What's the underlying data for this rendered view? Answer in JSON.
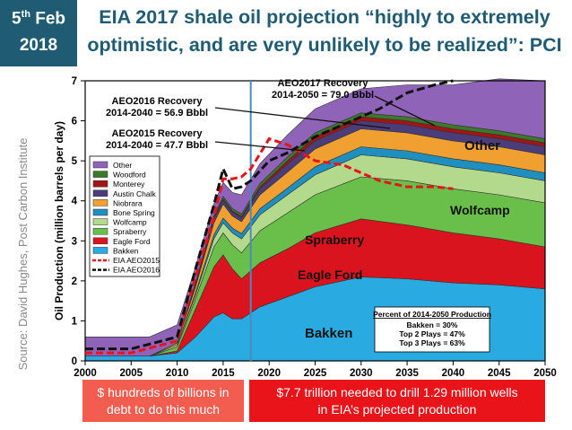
{
  "header": {
    "date_day": "5",
    "date_suffix": "th",
    "date_month": "Feb",
    "date_year": "2018",
    "title_line1": "EIA 2017 shale oil projection “highly to extremely",
    "title_line2": "optimistic, and are very unlikely to be realized”: PCI"
  },
  "source": "Source: David Hughes, Post Carbon Institute",
  "boxes": {
    "left_line1": "$ hundreds of billions in",
    "left_line2": "debt to do this much",
    "right_line1": "$7.7 trillion needed to drill 1.29 million wells",
    "right_line2": "in EIA’s projected production"
  },
  "chart_data": {
    "type": "area",
    "ylabel": "Oil Production (million barrels per day)",
    "xlim": [
      2000,
      2050
    ],
    "ylim": [
      0,
      7
    ],
    "xticks": [
      "2000",
      "2005",
      "2010",
      "2015",
      "2020",
      "2025",
      "2030",
      "2035",
      "2040",
      "2045",
      "2050"
    ],
    "yticks": [
      "0",
      "1",
      "2",
      "3",
      "4",
      "5",
      "6",
      "7"
    ],
    "grid": false,
    "legend_position": "left",
    "x": [
      2000,
      2007,
      2010,
      2012,
      2014,
      2015,
      2016,
      2017,
      2019,
      2022,
      2025,
      2030,
      2035,
      2040,
      2045,
      2050
    ],
    "series": [
      {
        "name": "Bakken",
        "color": "#29abe2",
        "values": [
          0.12,
          0.12,
          0.2,
          0.6,
          1.1,
          1.2,
          1.05,
          1.05,
          1.35,
          1.6,
          1.85,
          2.1,
          2.05,
          1.95,
          1.9,
          1.8
        ]
      },
      {
        "name": "Eagle Ford",
        "color": "#d9141e",
        "values": [
          0.0,
          0.0,
          0.05,
          0.7,
          1.25,
          1.45,
          1.25,
          1.0,
          1.1,
          1.2,
          1.35,
          1.45,
          1.35,
          1.25,
          1.15,
          1.05
        ]
      },
      {
        "name": "Spraberry",
        "color": "#6abf4b",
        "values": [
          0.0,
          0.0,
          0.1,
          0.25,
          0.5,
          0.55,
          0.6,
          0.65,
          0.8,
          0.9,
          0.95,
          1.05,
          1.1,
          1.1,
          1.1,
          1.1
        ]
      },
      {
        "name": "Wolfcamp",
        "color": "#b3d98c",
        "values": [
          0.0,
          0.0,
          0.05,
          0.1,
          0.2,
          0.25,
          0.3,
          0.35,
          0.4,
          0.45,
          0.5,
          0.55,
          0.55,
          0.55,
          0.55,
          0.55
        ]
      },
      {
        "name": "Bone Spring",
        "color": "#1f8fbf",
        "values": [
          0.0,
          0.0,
          0.0,
          0.05,
          0.1,
          0.12,
          0.12,
          0.13,
          0.15,
          0.17,
          0.2,
          0.2,
          0.2,
          0.2,
          0.2,
          0.2
        ]
      },
      {
        "name": "Niobrara",
        "color": "#f0a030",
        "values": [
          0.0,
          0.0,
          0.05,
          0.15,
          0.3,
          0.35,
          0.3,
          0.3,
          0.35,
          0.4,
          0.45,
          0.45,
          0.45,
          0.45,
          0.45,
          0.45
        ]
      },
      {
        "name": "Austin Chalk",
        "color": "#4a3d7a",
        "values": [
          0.0,
          0.0,
          0.0,
          0.05,
          0.1,
          0.1,
          0.1,
          0.1,
          0.15,
          0.2,
          0.2,
          0.2,
          0.2,
          0.2,
          0.2,
          0.2
        ]
      },
      {
        "name": "Monterey",
        "color": "#a31515",
        "values": [
          0.0,
          0.0,
          0.0,
          0.02,
          0.03,
          0.03,
          0.03,
          0.03,
          0.05,
          0.08,
          0.1,
          0.1,
          0.1,
          0.1,
          0.1,
          0.1
        ]
      },
      {
        "name": "Woodford",
        "color": "#3a7a2a",
        "values": [
          0.0,
          0.0,
          0.0,
          0.03,
          0.05,
          0.06,
          0.06,
          0.06,
          0.08,
          0.1,
          0.1,
          0.1,
          0.1,
          0.1,
          0.1,
          0.1
        ]
      },
      {
        "name": "Other",
        "color": "#8e63b8",
        "values": [
          0.48,
          0.48,
          0.45,
          0.4,
          0.3,
          0.35,
          0.4,
          0.48,
          0.5,
          0.55,
          0.6,
          0.6,
          0.8,
          1.0,
          1.3,
          1.45
        ]
      }
    ],
    "lines": [
      {
        "name": "EIA AEO2015",
        "color": "#e8141a",
        "dash": "8,4",
        "x": [
          2000,
          2005,
          2010,
          2012,
          2014,
          2015,
          2016,
          2017,
          2018,
          2020,
          2022,
          2025,
          2028,
          2030,
          2032,
          2035,
          2038,
          2040
        ],
        "values": [
          0.2,
          0.2,
          0.5,
          2.1,
          3.6,
          4.55,
          4.55,
          4.6,
          4.8,
          5.55,
          5.4,
          5.0,
          4.9,
          4.7,
          4.5,
          4.35,
          4.35,
          4.3
        ]
      },
      {
        "name": "EIA AEO2016",
        "color": "#111111",
        "dash": "9,4",
        "x": [
          2000,
          2005,
          2010,
          2012,
          2014,
          2015,
          2016,
          2017,
          2018,
          2020,
          2022,
          2025,
          2028,
          2030,
          2032,
          2035,
          2038,
          2040
        ],
        "values": [
          0.3,
          0.3,
          0.6,
          2.3,
          3.9,
          4.8,
          4.3,
          4.35,
          4.5,
          5.0,
          5.2,
          5.6,
          5.9,
          6.1,
          6.3,
          6.7,
          6.9,
          7.0
        ]
      }
    ],
    "vertical_marker_x": 2018,
    "annotations": {
      "aeo2016": "AEO2016 Recovery\n2014-2040 = 56.9 Bbbl",
      "aeo2015": "AEO2015 Recovery\n2014-2040 = 47.7 Bbbl",
      "aeo2017": "AEO2017 Recovery\n2014-2050 = 79.0 Bbbl"
    },
    "area_labels": {
      "other": "Other",
      "wolfcamp": "Wolfcamp",
      "spraberry": "Spraberry",
      "eagle_ford": "Eagle Ford",
      "bakken": "Bakken"
    },
    "percent_box": {
      "title": "Percent of 2014-2050 Production",
      "rows": [
        "Bakken = 30%",
        "Top 2 Plays = 47%",
        "Top 3 Plays = 63%"
      ]
    },
    "legend": [
      "Other",
      "Woodford",
      "Monterey",
      "Austin Chalk",
      "Niobrara",
      "Bone Spring",
      "Wolfcamp",
      "Spraberry",
      "Eagle Ford",
      "Bakken",
      "EIA AEO2015",
      "EIA AEO2016"
    ]
  }
}
